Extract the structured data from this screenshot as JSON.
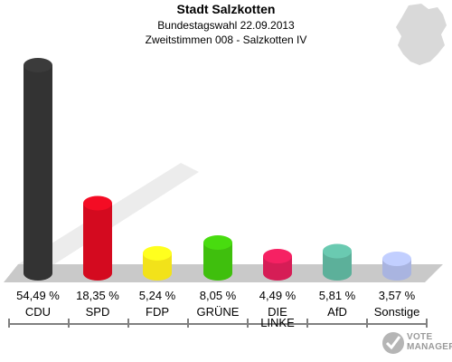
{
  "header": {
    "title": "Stadt Salzkotten",
    "subtitle1": "Bundestagswahl 22.09.2013",
    "subtitle2": "Zweitstimmen 008 - Salzkotten IV"
  },
  "watermark": {
    "line1": "VOTE",
    "line2": "MANAGER"
  },
  "colors": {
    "CDU": "#333333",
    "SPD": "#d40a1f",
    "FDP": "#f2e21a",
    "GRÜNE": "#3fbf0d",
    "DIE LINKE": "#d61d56",
    "AfD": "#5cb09a",
    "Sonstige": "#a9b4e0",
    "platform": "#c9c9c9",
    "background_map": "#d9d9d9"
  },
  "chart_data": {
    "type": "bar",
    "title": "Stadt Salzkotten",
    "subtitle": "Bundestagswahl 22.09.2013 · Zweitstimmen 008 - Salzkotten IV",
    "categories": [
      "CDU",
      "SPD",
      "FDP",
      "GRÜNE",
      "DIE LINKE",
      "AfD",
      "Sonstige"
    ],
    "category_lines": [
      [
        "CDU"
      ],
      [
        "SPD"
      ],
      [
        "FDP"
      ],
      [
        "GRÜNE"
      ],
      [
        "DIE",
        "LINKE"
      ],
      [
        "AfD"
      ],
      [
        "Sonstige"
      ]
    ],
    "values": [
      54.49,
      18.35,
      5.24,
      8.05,
      4.49,
      5.81,
      3.57
    ],
    "value_labels": [
      "54,49 %",
      "18,35 %",
      "5,24 %",
      "8,05 %",
      "4,49 %",
      "5,81 %",
      "3,57 %"
    ],
    "unit": "%",
    "legend": "none",
    "grid": false
  }
}
